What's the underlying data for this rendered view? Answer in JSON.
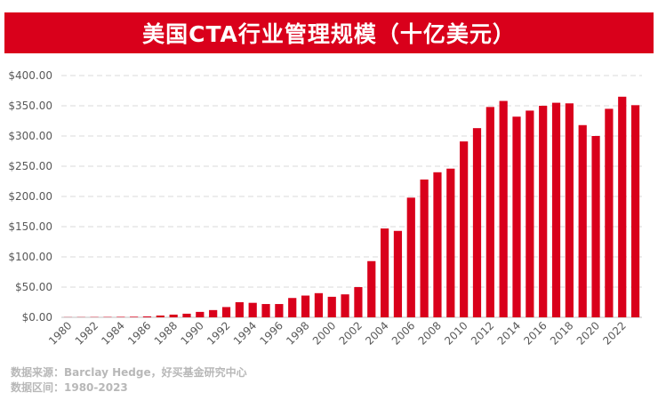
{
  "colors": {
    "accent": "#d9001b",
    "bar": "#d9001b",
    "grid": "#d9d9d9",
    "text": "#595959",
    "note": "#b8b8b8"
  },
  "header": {
    "title": "美国CTA行业管理规模（十亿美元）"
  },
  "footer": {
    "source": "数据来源：Barclay Hedge，好买基金研究中心",
    "period": "数据区间：1980-2023"
  },
  "chart_data": {
    "type": "bar",
    "title": "美国CTA行业管理规模（十亿美元）",
    "xlabel": "",
    "ylabel": "",
    "ylim": [
      0,
      400
    ],
    "yticks": [
      "$0.00",
      "$50.00",
      "$100.00",
      "$150.00",
      "$200.00",
      "$250.00",
      "$300.00",
      "$350.00",
      "$400.00"
    ],
    "grid": true,
    "legend": "none",
    "categories": [
      "1980",
      "1981",
      "1982",
      "1983",
      "1984",
      "1985",
      "1986",
      "1987",
      "1988",
      "1989",
      "1990",
      "1991",
      "1992",
      "1993",
      "1994",
      "1995",
      "1996",
      "1997",
      "1998",
      "1999",
      "2000",
      "2001",
      "2002",
      "2003",
      "2004",
      "2005",
      "2006",
      "2007",
      "2008",
      "2009",
      "2010",
      "2011",
      "2012",
      "2013",
      "2014",
      "2015",
      "2016",
      "2017",
      "2018",
      "2019",
      "2020",
      "2021",
      "2022",
      "2023"
    ],
    "xtick_labels": [
      "1980",
      "",
      "1982",
      "",
      "1984",
      "",
      "1986",
      "",
      "1988",
      "",
      "1990",
      "",
      "1992",
      "",
      "1994",
      "",
      "1996",
      "",
      "1998",
      "",
      "2000",
      "",
      "2002",
      "",
      "2004",
      "",
      "2006",
      "",
      "2008",
      "",
      "2010",
      "",
      "2012",
      "",
      "2014",
      "",
      "2016",
      "",
      "2018",
      "",
      "2020",
      "",
      "2022",
      ""
    ],
    "values": [
      0.3,
      0.4,
      0.5,
      0.6,
      0.8,
      1.0,
      1.5,
      3,
      4.5,
      6,
      9,
      12,
      17,
      25,
      24,
      22,
      22,
      32,
      36,
      40,
      34,
      38,
      50,
      93,
      147,
      143,
      198,
      228,
      240,
      246,
      291,
      313,
      348,
      358,
      332,
      342,
      350,
      355,
      354,
      318,
      300,
      345,
      365,
      351
    ]
  }
}
